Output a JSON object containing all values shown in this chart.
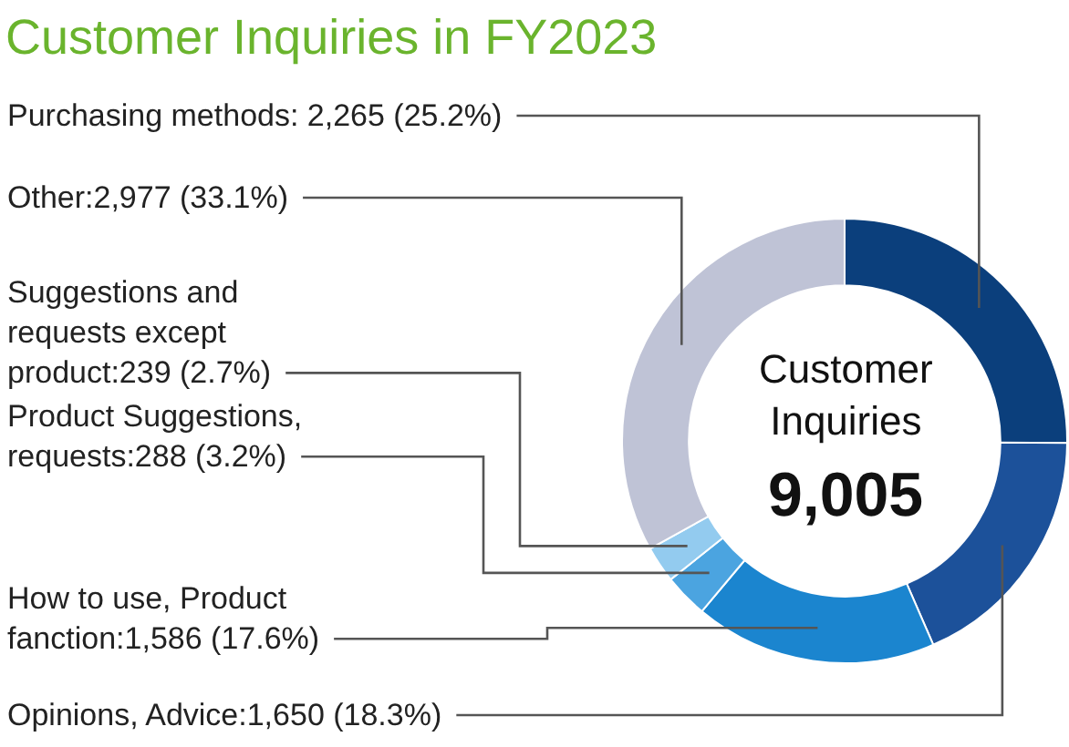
{
  "chart_data": {
    "type": "donut",
    "title": "Customer Inquiries in FY2023",
    "categories": [
      "Purchasing methods: 2,265 (25.2%)",
      "Opinions, Advice:1,650 (18.3%)",
      "How to use, Product fanction:1,586 (17.6%)",
      "Product Suggestions, requests:288 (3.2%)",
      "Suggestions and requests except product:239 (2.7%)",
      "Other:2,977 (33.1%)"
    ],
    "values": [
      2265,
      1650,
      1586,
      288,
      239,
      2977
    ],
    "colors": [
      "#0b3f7c",
      "#1c519a",
      "#1b85cf",
      "#4ba4e0",
      "#93cbef",
      "#bfc3d6"
    ],
    "annotations": [
      "Customer Inquiries",
      "9,005"
    ]
  }
}
